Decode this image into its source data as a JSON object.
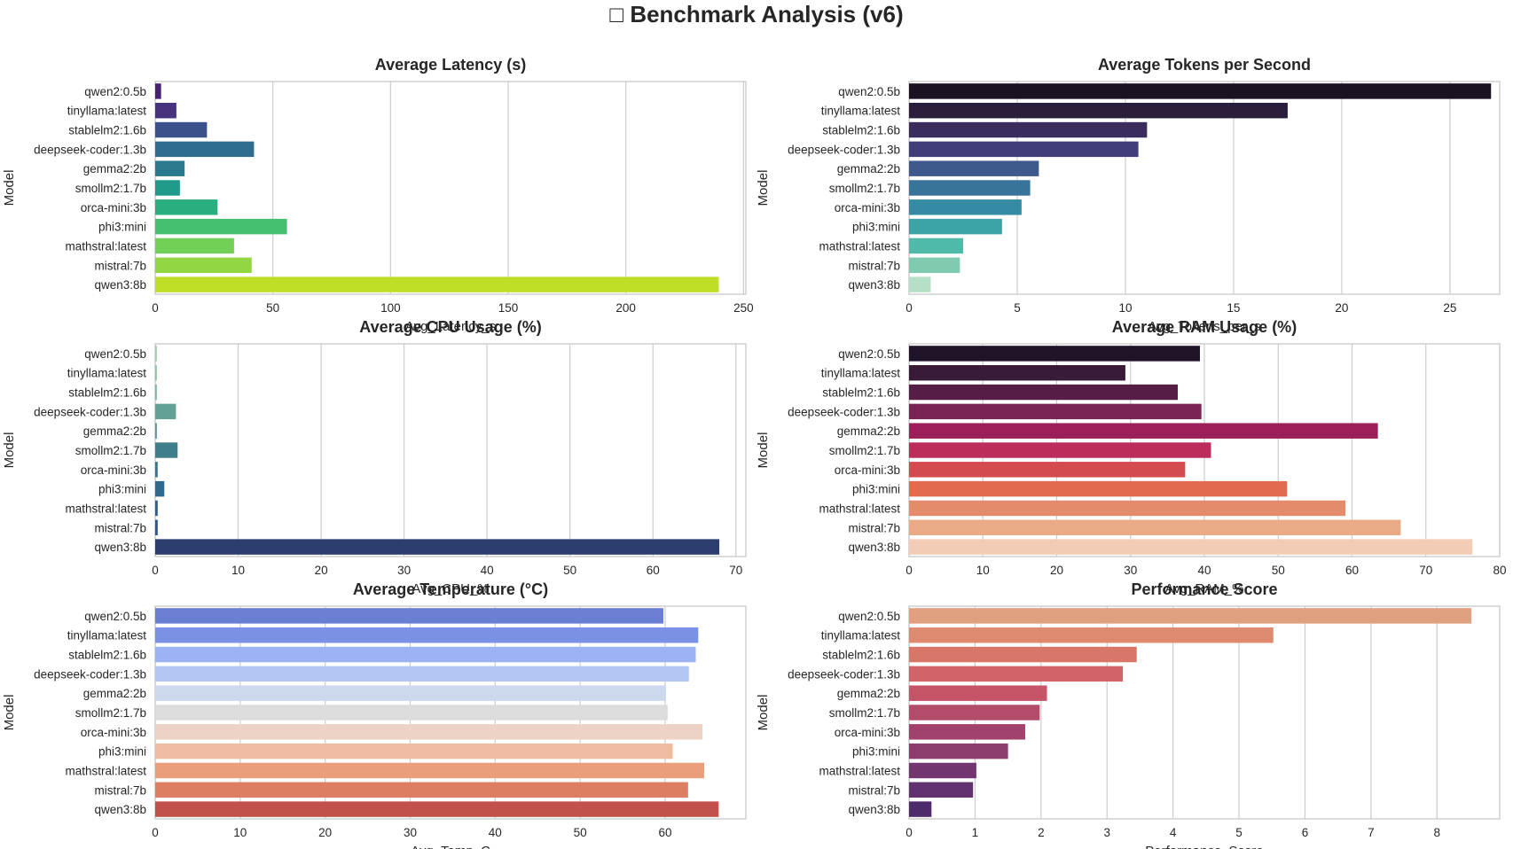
{
  "figure": {
    "suptitle": "□ Benchmark Analysis (v6)"
  },
  "chart_data": [
    {
      "type": "bar",
      "orientation": "horizontal",
      "title": "Average Latency (s)",
      "xlabel": "Avg_Latency_s",
      "ylabel": "Model",
      "categories": [
        "qwen2:0.5b",
        "tinyllama:latest",
        "stablelm2:1.6b",
        "deepseek-coder:1.3b",
        "gemma2:2b",
        "smollm2:1.7b",
        "orca-mini:3b",
        "phi3:mini",
        "mathstral:latest",
        "mistral:7b",
        "qwen3:8b"
      ],
      "values": [
        2.5,
        9,
        22,
        42,
        12.5,
        10.5,
        26.5,
        56,
        33.5,
        41,
        239.5
      ],
      "xlim": [
        0,
        251
      ],
      "xticks": [
        0,
        50,
        100,
        150,
        200,
        250
      ],
      "grid": true,
      "palette": "viridis",
      "colors": [
        "#482173",
        "#47337e",
        "#3b518b",
        "#2f6d8e",
        "#2b798e",
        "#1f9a8a",
        "#2aae7e",
        "#44bf70",
        "#72cf55",
        "#90d743",
        "#bddf26"
      ]
    },
    {
      "type": "bar",
      "orientation": "horizontal",
      "title": "Average Tokens per Second",
      "xlabel": "Avg_Tokens_per_s",
      "ylabel": "Model",
      "categories": [
        "qwen2:0.5b",
        "tinyllama:latest",
        "stablelm2:1.6b",
        "deepseek-coder:1.3b",
        "gemma2:2b",
        "smollm2:1.7b",
        "orca-mini:3b",
        "phi3:mini",
        "mathstral:latest",
        "mistral:7b",
        "qwen3:8b"
      ],
      "values": [
        26.9,
        17.5,
        11.0,
        10.6,
        6.0,
        5.6,
        5.2,
        4.3,
        2.5,
        2.35,
        1.0
      ],
      "xlim": [
        0,
        27.3
      ],
      "xticks": [
        0,
        5,
        10,
        15,
        20,
        25
      ],
      "grid": true,
      "palette": "mako",
      "colors": [
        "#1a1220",
        "#2b1d3c",
        "#3b2c5e",
        "#413d7b",
        "#3e5a8d",
        "#38739a",
        "#348ba3",
        "#3ca4a6",
        "#4fbaa7",
        "#80cbb0",
        "#b5dfc6"
      ]
    },
    {
      "type": "bar",
      "orientation": "horizontal",
      "title": "Average CPU Usage (%)",
      "xlabel": "Avg_CPU_%",
      "ylabel": "Model",
      "categories": [
        "qwen2:0.5b",
        "tinyllama:latest",
        "stablelm2:1.6b",
        "deepseek-coder:1.3b",
        "gemma2:2b",
        "smollm2:1.7b",
        "orca-mini:3b",
        "phi3:mini",
        "mathstral:latest",
        "mistral:7b",
        "qwen3:8b"
      ],
      "values": [
        0.2,
        0.2,
        0.2,
        2.5,
        0.2,
        2.7,
        0.3,
        1.1,
        0.3,
        0.3,
        68
      ],
      "xlim": [
        0,
        71.2
      ],
      "xticks": [
        0,
        10,
        20,
        30,
        40,
        50,
        60,
        70
      ],
      "grid": true,
      "palette": "crest",
      "colors": [
        "#a5cfa8",
        "#92c4a2",
        "#7fb79d",
        "#62a193",
        "#5a9793",
        "#3f7f8c",
        "#377590",
        "#2f6a8e",
        "#2c5f8e",
        "#2b578c",
        "#2c3e6e"
      ]
    },
    {
      "type": "bar",
      "orientation": "horizontal",
      "title": "Average RAM Usage (%)",
      "xlabel": "Avg_RAM_%",
      "ylabel": "Model",
      "categories": [
        "qwen2:0.5b",
        "tinyllama:latest",
        "stablelm2:1.6b",
        "deepseek-coder:1.3b",
        "gemma2:2b",
        "smollm2:1.7b",
        "orca-mini:3b",
        "phi3:mini",
        "mathstral:latest",
        "mistral:7b",
        "qwen3:8b"
      ],
      "values": [
        39.4,
        29.3,
        36.4,
        39.6,
        63.5,
        40.9,
        37.4,
        51.2,
        59.1,
        66.6,
        76.3
      ],
      "xlim": [
        0,
        80
      ],
      "xticks": [
        0,
        10,
        20,
        30,
        40,
        50,
        60,
        70,
        80
      ],
      "grid": true,
      "palette": "rocket",
      "colors": [
        "#1e1327",
        "#391b37",
        "#561e46",
        "#782553",
        "#9c1f5a",
        "#bb2d5a",
        "#d34a4f",
        "#e16a4f",
        "#e48b6b",
        "#eaaa86",
        "#f2ccb5"
      ]
    },
    {
      "type": "bar",
      "orientation": "horizontal",
      "title": "Average Temperature (°C)",
      "xlabel": "Avg_Temp_C",
      "ylabel": "Model",
      "categories": [
        "qwen2:0.5b",
        "tinyllama:latest",
        "stablelm2:1.6b",
        "deepseek-coder:1.3b",
        "gemma2:2b",
        "smollm2:1.7b",
        "orca-mini:3b",
        "phi3:mini",
        "mathstral:latest",
        "mistral:7b",
        "qwen3:8b"
      ],
      "values": [
        59.8,
        63.9,
        63.6,
        62.8,
        60.1,
        60.3,
        64.4,
        60.9,
        64.6,
        62.7,
        66.3
      ],
      "xlim": [
        0,
        69.5
      ],
      "xticks": [
        0,
        10,
        20,
        30,
        40,
        50,
        60
      ],
      "grid": true,
      "palette": "coolwarm",
      "colors": [
        "#6a7fd4",
        "#7b91e6",
        "#9bb2f5",
        "#b3c7f4",
        "#cbd8ee",
        "#dcdcdc",
        "#ecd3c5",
        "#efbba2",
        "#eb9e7c",
        "#dd7d62",
        "#c1514a"
      ]
    },
    {
      "type": "bar",
      "orientation": "horizontal",
      "title": "Performance Score",
      "xlabel": "Performance_Score",
      "ylabel": "Model",
      "categories": [
        "qwen2:0.5b",
        "tinyllama:latest",
        "stablelm2:1.6b",
        "deepseek-coder:1.3b",
        "gemma2:2b",
        "smollm2:1.7b",
        "orca-mini:3b",
        "phi3:mini",
        "mathstral:latest",
        "mistral:7b",
        "qwen3:8b"
      ],
      "values": [
        8.52,
        5.52,
        3.45,
        3.24,
        2.09,
        1.98,
        1.76,
        1.5,
        1.02,
        0.97,
        0.34
      ],
      "xlim": [
        0,
        8.95
      ],
      "xticks": [
        0,
        1,
        2,
        3,
        4,
        5,
        6,
        7,
        8
      ],
      "grid": true,
      "palette": "flare",
      "colors": [
        "#e0a07f",
        "#dd8a6e",
        "#d87668",
        "#d26468",
        "#c45466",
        "#b44b6a",
        "#a1426d",
        "#8d3c6e",
        "#733570",
        "#623170",
        "#4e2b6a"
      ]
    }
  ]
}
